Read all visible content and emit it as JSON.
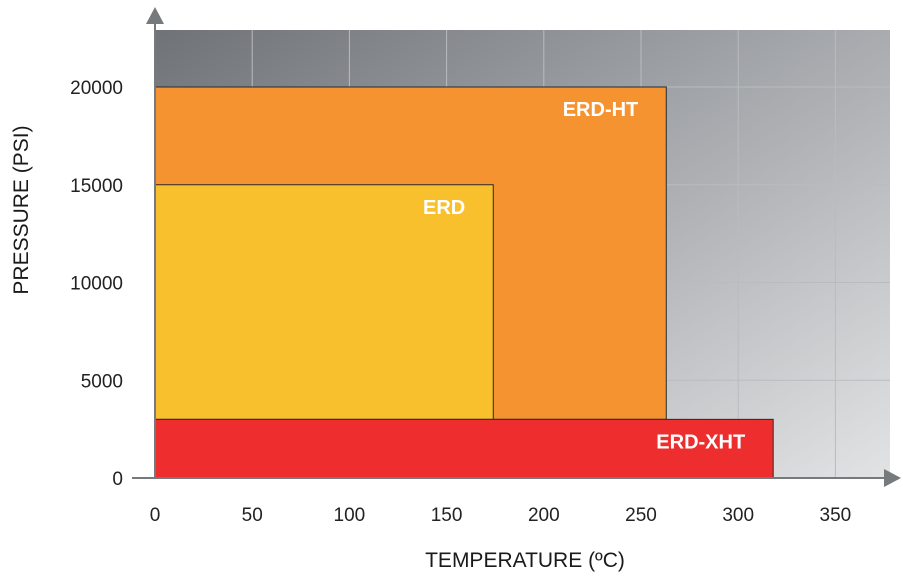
{
  "chart_data": {
    "type": "area",
    "xlabel": "TEMPERATURE (ºC)",
    "ylabel": "PRESSURE (PSI)",
    "xlim": [
      0,
      375
    ],
    "ylim": [
      0,
      23000
    ],
    "x_ticks": [
      0,
      50,
      100,
      150,
      200,
      250,
      300,
      350
    ],
    "y_ticks": [
      0,
      5000,
      10000,
      15000,
      20000
    ],
    "grid": true,
    "regions": [
      {
        "name": "ERD-HT",
        "x": [
          0,
          263
        ],
        "y": [
          3000,
          20000
        ],
        "color": "#f59331"
      },
      {
        "name": "ERD",
        "x": [
          0,
          174
        ],
        "y": [
          3000,
          15000
        ],
        "color": "#f8c02c"
      },
      {
        "name": "ERD-XHT",
        "x": [
          0,
          318
        ],
        "y": [
          0,
          3000
        ],
        "color": "#ee2e2e"
      }
    ]
  }
}
